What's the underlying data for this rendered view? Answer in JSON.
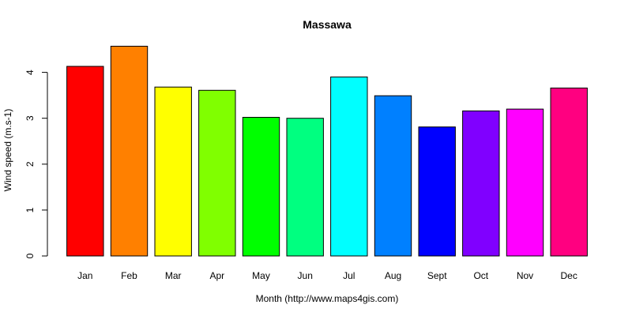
{
  "chart_data": {
    "type": "bar",
    "title": "Massawa",
    "xlabel": "Month (http://www.maps4gis.com)",
    "ylabel": "Wind speed (m.s-1)",
    "categories": [
      "Jan",
      "Feb",
      "Mar",
      "Apr",
      "May",
      "Jun",
      "Jul",
      "Aug",
      "Sept",
      "Oct",
      "Nov",
      "Dec"
    ],
    "values": [
      4.13,
      4.57,
      3.68,
      3.61,
      3.02,
      3.0,
      3.9,
      3.49,
      2.81,
      3.16,
      3.2,
      3.66
    ],
    "colors": [
      "#FF0000",
      "#FF8000",
      "#FFFF00",
      "#80FF00",
      "#00FF00",
      "#00FF80",
      "#00FFFF",
      "#0080FF",
      "#0000FF",
      "#8000FF",
      "#FF00FF",
      "#FF0080"
    ],
    "yticks": [
      0,
      1,
      2,
      3,
      4
    ],
    "ylim": [
      0,
      4.57
    ],
    "grid": false,
    "legend": "none"
  }
}
